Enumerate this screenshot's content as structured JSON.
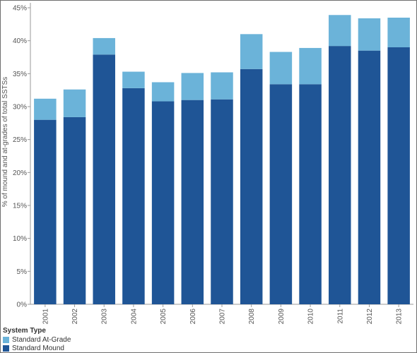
{
  "chart_data": {
    "type": "bar",
    "stacked": true,
    "categories": [
      "2001",
      "2002",
      "2003",
      "2004",
      "2005",
      "2006",
      "2007",
      "2008",
      "2009",
      "2010",
      "2011",
      "2012",
      "2013"
    ],
    "series": [
      {
        "name": "Standard Mound",
        "color": "#1f5596",
        "values": [
          28.0,
          28.4,
          37.9,
          32.8,
          30.8,
          31.0,
          31.1,
          35.7,
          33.4,
          33.4,
          39.2,
          38.5,
          39.0
        ]
      },
      {
        "name": "Standard At-Grade",
        "color": "#6bb3d9",
        "values": [
          3.2,
          4.2,
          2.5,
          2.5,
          2.9,
          4.1,
          4.1,
          5.3,
          4.9,
          5.5,
          4.7,
          4.9,
          4.5
        ]
      }
    ],
    "ylabel": "% of mound and at-grades of total SSTSs",
    "xlabel": "",
    "ylim": [
      0,
      45
    ],
    "yticks": [
      0,
      5,
      10,
      15,
      20,
      25,
      30,
      35,
      40,
      45
    ],
    "ytick_labels": [
      "0%",
      "5%",
      "10%",
      "15%",
      "20%",
      "25%",
      "30%",
      "35%",
      "40%",
      "45%"
    ],
    "grid": false,
    "legend": {
      "title": "System Type",
      "position": "bottom-left",
      "entries": [
        "Standard At-Grade",
        "Standard Mound"
      ]
    }
  }
}
